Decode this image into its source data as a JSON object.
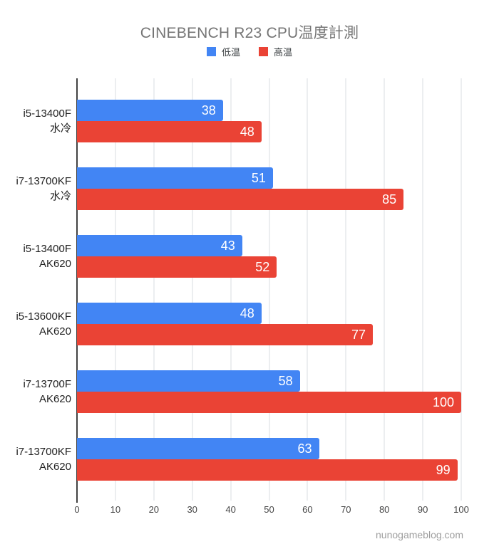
{
  "title": "CINEBENCH R23 CPU温度計測",
  "watermark": "nunogameblog.com",
  "legend": [
    {
      "label": "低温",
      "color": "#4285F4"
    },
    {
      "label": "高温",
      "color": "#EA4335"
    }
  ],
  "chart_data": {
    "type": "bar",
    "orientation": "horizontal",
    "title": "CINEBENCH R23 CPU温度計測",
    "xlabel": "",
    "ylabel": "",
    "xlim": [
      0,
      100
    ],
    "xticks": [
      0,
      10,
      20,
      30,
      40,
      50,
      60,
      70,
      80,
      90,
      100
    ],
    "grid": true,
    "legend_position": "top",
    "categories": [
      {
        "line1": "i5-13400F",
        "line2": "水冷"
      },
      {
        "line1": "i7-13700KF",
        "line2": "水冷"
      },
      {
        "line1": "i5-13400F",
        "line2": "AK620"
      },
      {
        "line1": "i5-13600KF",
        "line2": "AK620"
      },
      {
        "line1": "i7-13700F",
        "line2": "AK620"
      },
      {
        "line1": "i7-13700KF",
        "line2": "AK620"
      }
    ],
    "series": [
      {
        "name": "低温",
        "color": "#4285F4",
        "values": [
          38,
          51,
          43,
          48,
          58,
          63
        ]
      },
      {
        "name": "高温",
        "color": "#EA4335",
        "values": [
          48,
          85,
          52,
          77,
          100,
          99
        ]
      }
    ]
  }
}
